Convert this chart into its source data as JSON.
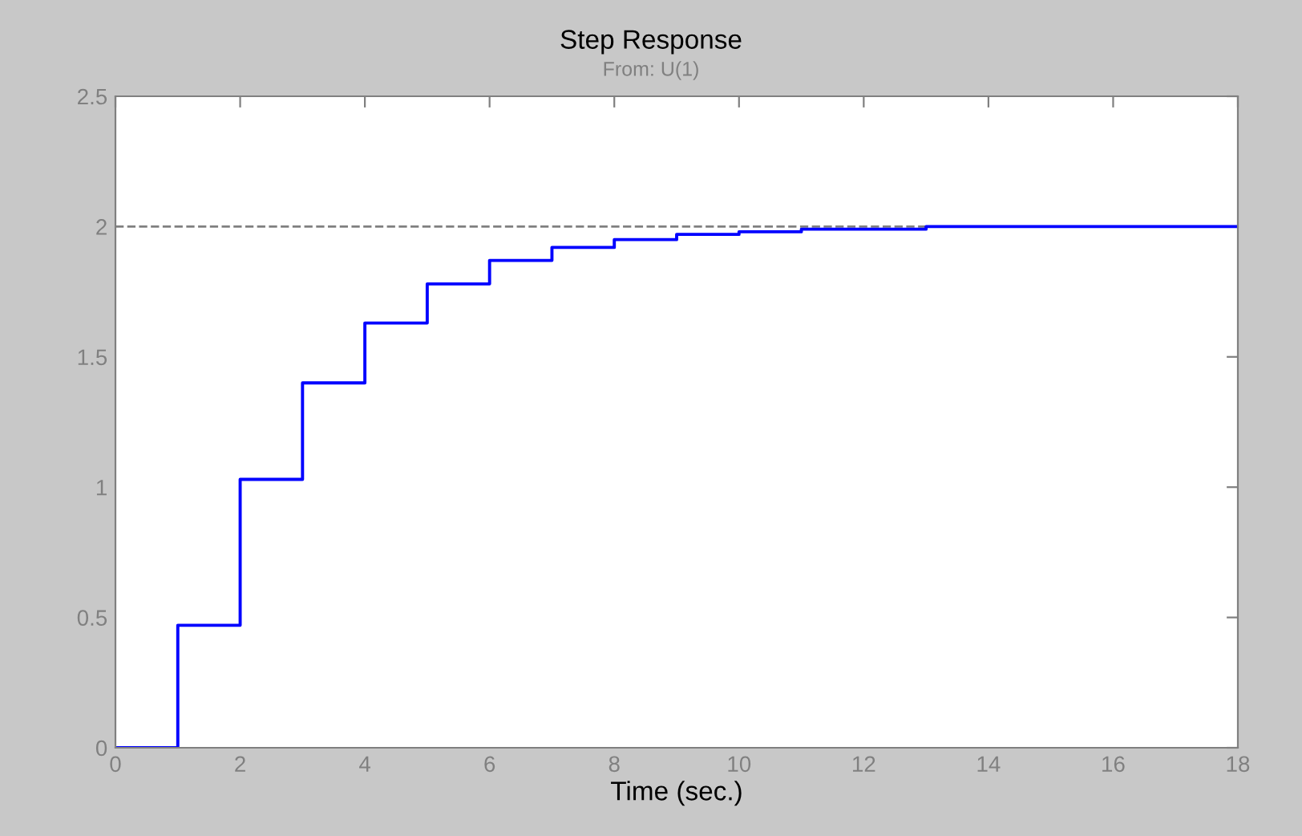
{
  "chart_data": {
    "type": "step",
    "title": "Step Response",
    "subtitle": "From: U(1)",
    "xlabel": "Time (sec.)",
    "x": [
      0,
      1,
      2,
      3,
      4,
      5,
      6,
      7,
      8,
      9,
      10,
      11,
      12,
      13,
      18
    ],
    "series": [
      {
        "color": "#0000ff",
        "values": [
          0,
          0.47,
          1.03,
          1.4,
          1.63,
          1.78,
          1.87,
          1.92,
          1.95,
          1.97,
          1.98,
          1.99,
          1.99,
          2.0,
          2.0
        ]
      }
    ],
    "xlim": [
      0,
      18
    ],
    "ylim": [
      0,
      2.5
    ],
    "xticks": [
      0,
      2,
      4,
      6,
      8,
      10,
      12,
      14,
      16,
      18
    ],
    "yticks": [
      0,
      0.5,
      1,
      1.5,
      2,
      2.5
    ],
    "ref_lines": [
      {
        "axis": "y",
        "value": 2,
        "color": "#808080",
        "line_style": "dashed"
      }
    ],
    "grid": false,
    "legend": false
  }
}
